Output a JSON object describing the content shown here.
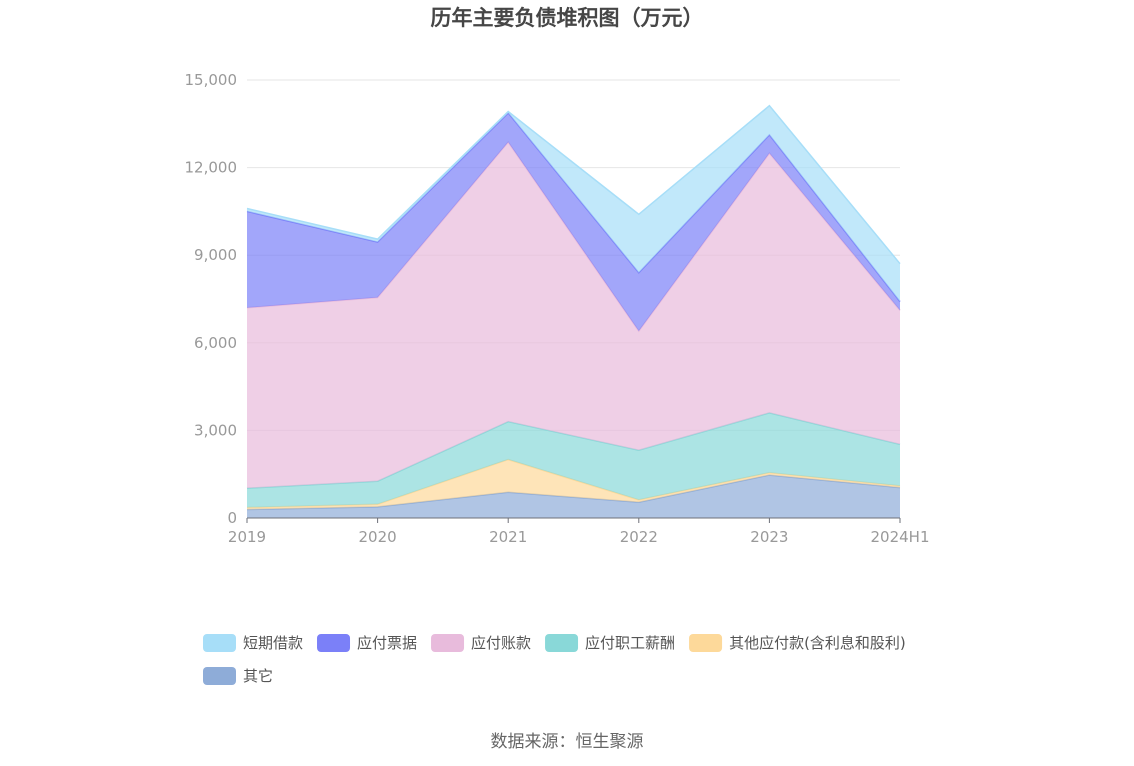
{
  "chart_data": {
    "type": "area",
    "stacked": true,
    "title": "历年主要负债堆积图（万元）",
    "categories": [
      "2019",
      "2020",
      "2021",
      "2022",
      "2023",
      "2024H1"
    ],
    "ylim": [
      0,
      15000
    ],
    "yticks": [
      "0",
      "3,000",
      "6,000",
      "9,000",
      "12,000",
      "15,000"
    ],
    "grid": true,
    "legend_position": "bottom",
    "series": [
      {
        "name": "其它",
        "color": "#8eacd8",
        "values": [
          290,
          380,
          880,
          540,
          1470,
          1040
        ]
      },
      {
        "name": "其他应付款(含利息和股利)",
        "color": "#fdd99a",
        "values": [
          70,
          90,
          1120,
          80,
          80,
          60
        ]
      },
      {
        "name": "应付职工薪酬",
        "color": "#89d8d8",
        "values": [
          660,
          790,
          1300,
          1700,
          2050,
          1420
        ]
      },
      {
        "name": "应付账款",
        "color": "#e8bbdc",
        "values": [
          6180,
          6290,
          9570,
          4080,
          8890,
          4590
        ]
      },
      {
        "name": "应付票据",
        "color": "#7b80f8",
        "values": [
          3300,
          1900,
          1000,
          2000,
          630,
          300
        ]
      },
      {
        "name": "短期借款",
        "color": "#a7def8",
        "values": [
          100,
          100,
          50,
          2000,
          1000,
          1300
        ]
      }
    ],
    "legend_order": [
      "短期借款",
      "应付票据",
      "应付账款",
      "应付职工薪酬",
      "其他应付款(含利息和股利)",
      "其它"
    ]
  },
  "source_text": "数据来源：恒生聚源"
}
